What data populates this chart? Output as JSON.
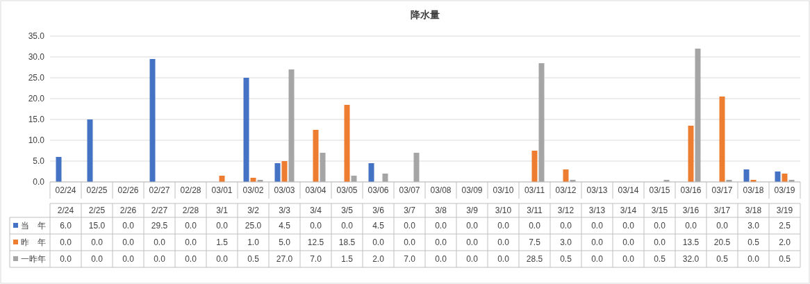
{
  "chart_data": {
    "type": "bar",
    "title": "降水量",
    "categories": [
      "02/24",
      "02/25",
      "02/26",
      "02/27",
      "02/28",
      "03/01",
      "03/02",
      "03/03",
      "03/04",
      "03/05",
      "03/06",
      "03/07",
      "03/08",
      "03/09",
      "03/10",
      "03/11",
      "03/12",
      "03/13",
      "03/14",
      "03/15",
      "03/16",
      "03/17",
      "03/18",
      "03/19"
    ],
    "annotations": [
      "2/24",
      "2/25",
      "2/26",
      "2/27",
      "2/28",
      "3/1",
      "3/2",
      "3/3",
      "3/4",
      "3/5",
      "3/6",
      "3/7",
      "3/8",
      "3/9",
      "3/10",
      "3/11",
      "3/12",
      "3/13",
      "3/14",
      "3/15",
      "3/16",
      "3/17",
      "3/18",
      "3/19"
    ],
    "ylim": [
      0,
      35
    ],
    "yticks": [
      {
        "value": 0,
        "label": "0.0"
      },
      {
        "value": 5,
        "label": "5.0"
      },
      {
        "value": 10,
        "label": "10.0"
      },
      {
        "value": 15,
        "label": "15.0"
      },
      {
        "value": 20,
        "label": "20.0"
      },
      {
        "value": 25,
        "label": "25.0"
      },
      {
        "value": 30,
        "label": "30.0"
      },
      {
        "value": 35,
        "label": "35.0"
      }
    ],
    "grid": "y",
    "legend": "bottom left",
    "series": [
      {
        "name": "当　年",
        "color": "#4472c4",
        "values": [
          6.0,
          15.0,
          0,
          29.5,
          0,
          0,
          25.0,
          4.5,
          0,
          0,
          4.5,
          0,
          0,
          0,
          0,
          0,
          0,
          0,
          0,
          0,
          0,
          0,
          3.0,
          2.5
        ],
        "value_labels": [
          "6.0",
          "15.0",
          "0.0",
          "29.5",
          "0.0",
          "0.0",
          "25.0",
          "4.5",
          "0.0",
          "0.0",
          "4.5",
          "0.0",
          "0.0",
          "0.0",
          "0.0",
          "0.0",
          "0.0",
          "0.0",
          "0.0",
          "0.0",
          "0.0",
          "0.0",
          "3.0",
          "2.5"
        ]
      },
      {
        "name": "昨　年",
        "color": "#ed7d31",
        "values": [
          0,
          0,
          0,
          0,
          0,
          1.5,
          1.0,
          5.0,
          12.5,
          18.5,
          0,
          0,
          0,
          0,
          0,
          7.5,
          3.0,
          0,
          0,
          0,
          13.5,
          20.5,
          0.5,
          2.0
        ],
        "value_labels": [
          "0.0",
          "0.0",
          "0.0",
          "0.0",
          "0.0",
          "1.5",
          "1.0",
          "5.0",
          "12.5",
          "18.5",
          "0.0",
          "0.0",
          "0.0",
          "0.0",
          "0.0",
          "7.5",
          "3.0",
          "0.0",
          "0.0",
          "0.0",
          "13.5",
          "20.5",
          "0.5",
          "2.0"
        ]
      },
      {
        "name": "一昨年",
        "color": "#a5a5a5",
        "values": [
          0,
          0,
          0,
          0,
          0,
          0,
          0.5,
          27.0,
          7.0,
          1.5,
          2.0,
          7.0,
          0,
          0,
          0,
          28.5,
          0.5,
          0,
          0,
          0.5,
          32.0,
          0.5,
          0,
          0.5
        ],
        "value_labels": [
          "0.0",
          "0.0",
          "0.0",
          "0.0",
          "0.0",
          "0.0",
          "0.5",
          "27.0",
          "7.0",
          "1.5",
          "2.0",
          "7.0",
          "0.0",
          "0.0",
          "0.0",
          "28.5",
          "0.5",
          "0.0",
          "0.0",
          "0.5",
          "32.0",
          "0.5",
          "0.0",
          "0.5"
        ]
      }
    ]
  }
}
